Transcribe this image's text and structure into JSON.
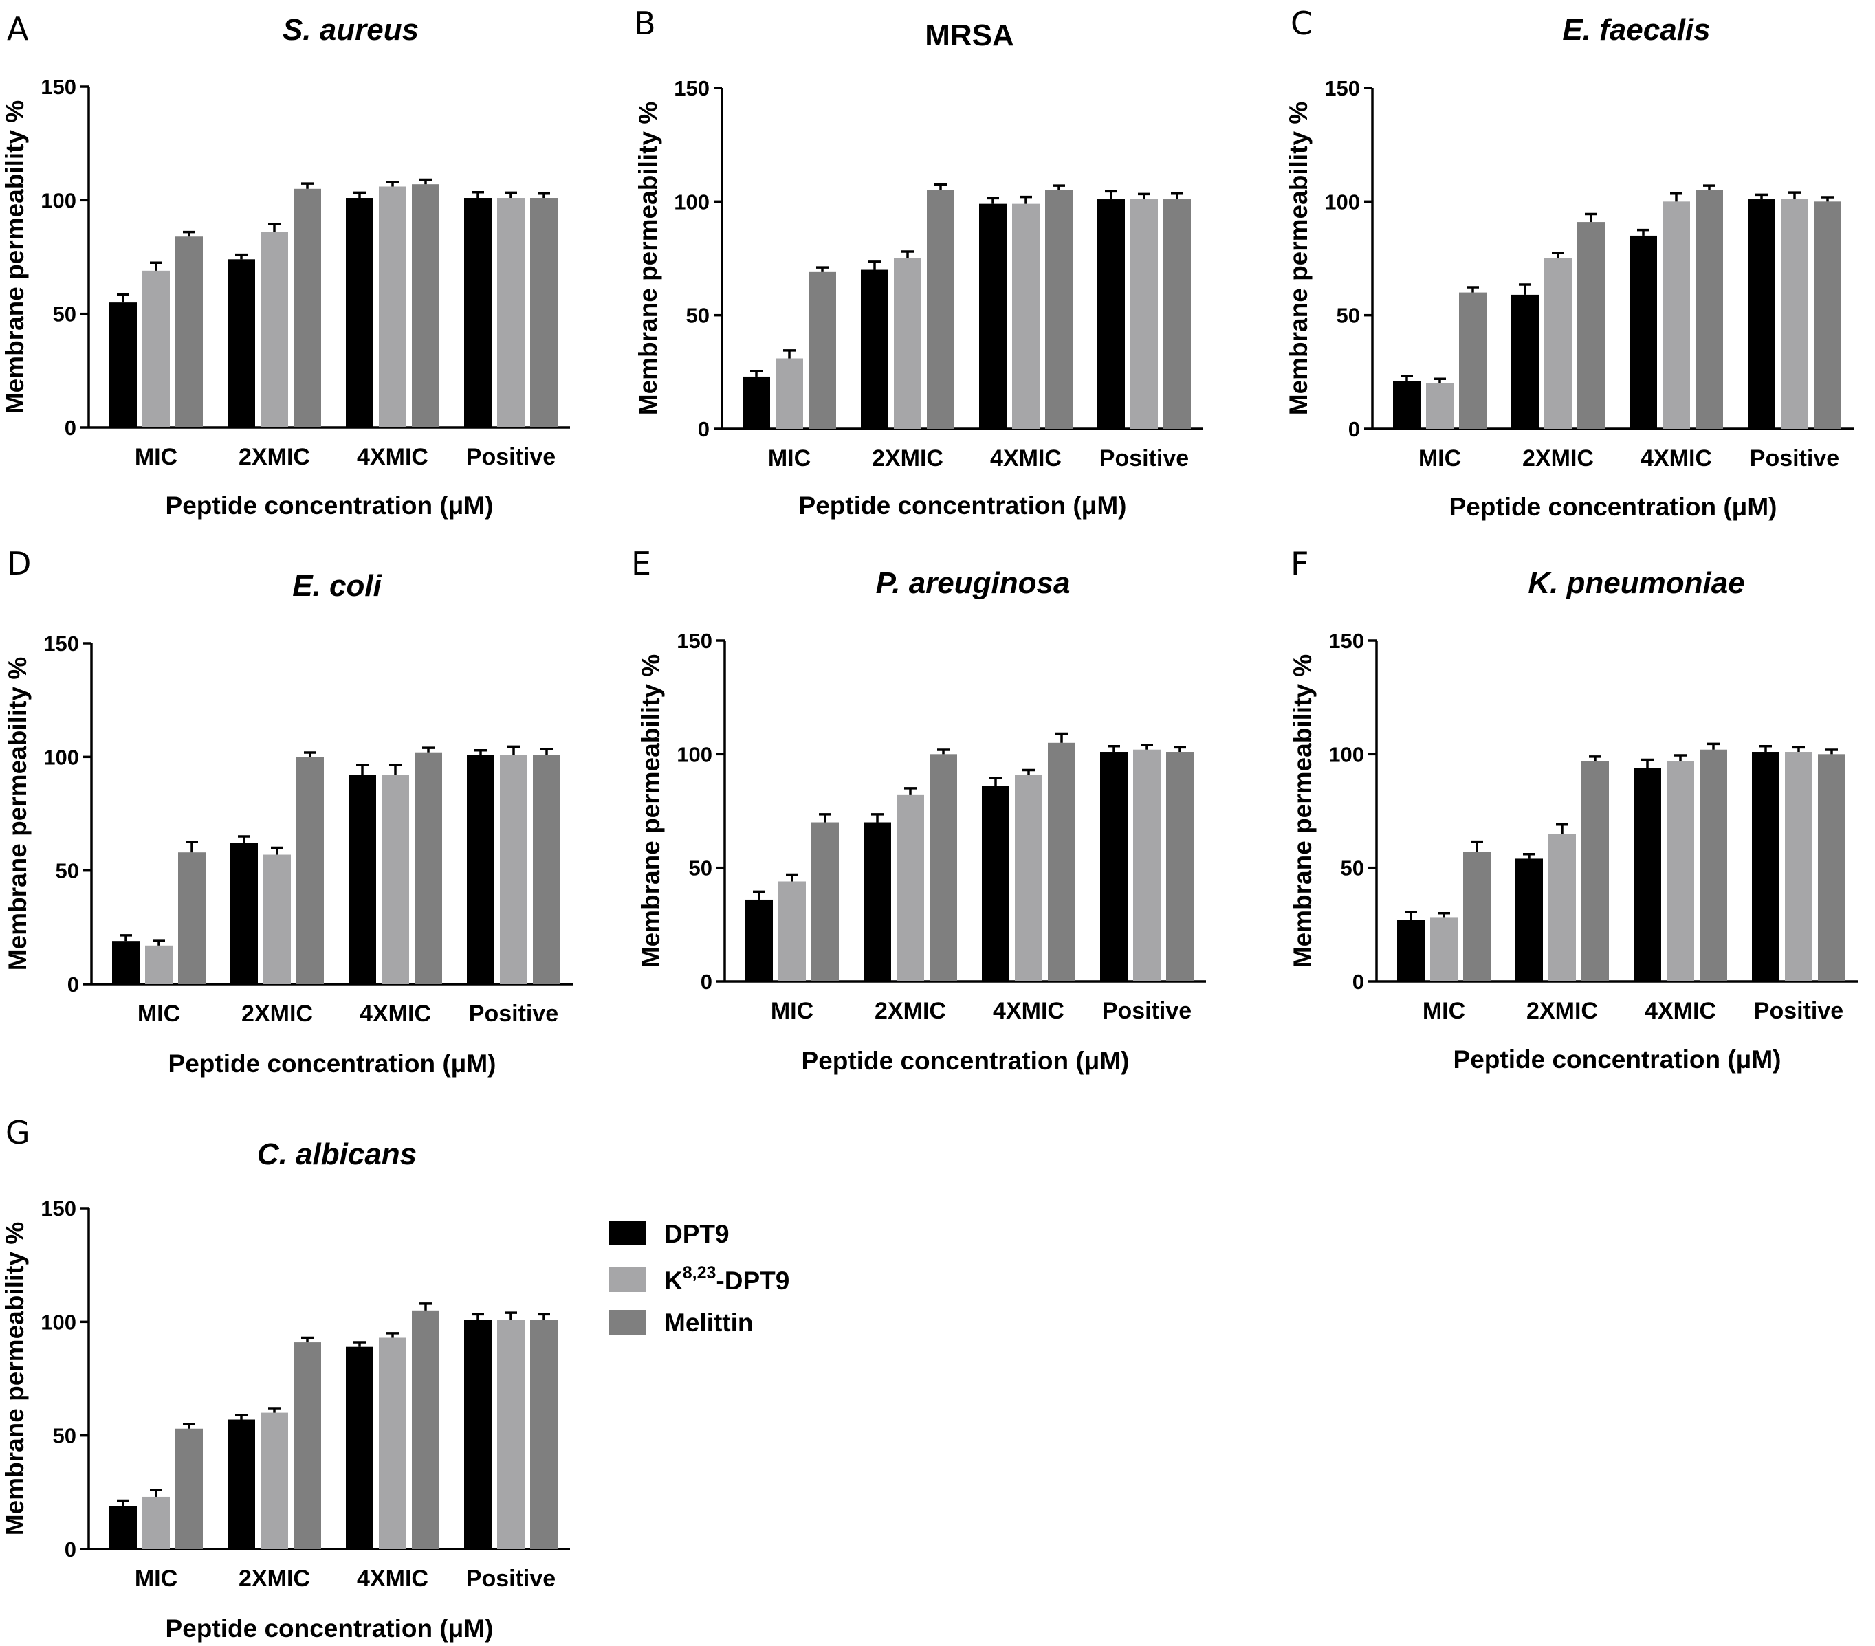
{
  "colors": {
    "DPT9": "#000000",
    "K8,23-DPT9": "#a6a6a8",
    "Melittin": "#7f7f7f"
  },
  "legend": {
    "items": [
      {
        "key": "DPT9",
        "label": "DPT9"
      },
      {
        "key": "K8,23-DPT9",
        "label_main": "K",
        "label_sup": "8,23",
        "label_rest": "-DPT9"
      },
      {
        "key": "Melittin",
        "label": "Melittin"
      }
    ]
  },
  "chart_data": [
    {
      "panel": "A",
      "type": "bar",
      "title": "S. aureus",
      "title_italic": true,
      "xlabel": "Peptide concentration (μM)",
      "ylabel": "Membrane permeability %",
      "ylim": [
        0,
        150
      ],
      "yticks": [
        0,
        50,
        100,
        150
      ],
      "categories": [
        "MIC",
        "2XMIC",
        "4XMIC",
        "Positive"
      ],
      "series": [
        {
          "name": "DPT9",
          "values": [
            55,
            74,
            101,
            101
          ],
          "errors": [
            2,
            0.5,
            0.8,
            1
          ]
        },
        {
          "name": "K8,23-DPT9",
          "values": [
            69,
            86,
            106,
            101
          ],
          "errors": [
            2,
            2,
            0.5,
            0.8
          ]
        },
        {
          "name": "Melittin",
          "values": [
            84,
            105,
            107,
            101
          ],
          "errors": [
            0.5,
            0.8,
            0.5,
            0.4
          ]
        }
      ]
    },
    {
      "panel": "B",
      "type": "bar",
      "title": "MRSA",
      "title_italic": false,
      "xlabel": "Peptide concentration (μM)",
      "ylabel": "Membrane permeability %",
      "ylim": [
        0,
        150
      ],
      "yticks": [
        0,
        50,
        100,
        150
      ],
      "categories": [
        "MIC",
        "2XMIC",
        "4XMIC",
        "Positive"
      ],
      "series": [
        {
          "name": "DPT9",
          "values": [
            23,
            70,
            99,
            101
          ],
          "errors": [
            0.8,
            2,
            1,
            2
          ]
        },
        {
          "name": "K8,23-DPT9",
          "values": [
            31,
            75,
            99,
            101
          ],
          "errors": [
            2,
            1.5,
            1.5,
            0.8
          ]
        },
        {
          "name": "Melittin",
          "values": [
            69,
            105,
            105,
            101
          ],
          "errors": [
            0.5,
            1,
            0.5,
            1
          ]
        }
      ]
    },
    {
      "panel": "C",
      "type": "bar",
      "title": "E. faecalis",
      "title_italic": true,
      "xlabel": "Peptide concentration (μM)",
      "ylabel": "Membrane permeability %",
      "ylim": [
        0,
        150
      ],
      "yticks": [
        0,
        50,
        100,
        150
      ],
      "categories": [
        "MIC",
        "2XMIC",
        "4XMIC",
        "Positive"
      ],
      "series": [
        {
          "name": "DPT9",
          "values": [
            21,
            59,
            85,
            101
          ],
          "errors": [
            0.8,
            3,
            1,
            0.5
          ]
        },
        {
          "name": "K8,23-DPT9",
          "values": [
            20,
            75,
            100,
            101
          ],
          "errors": [
            0.5,
            1,
            2,
            1.5
          ]
        },
        {
          "name": "Melittin",
          "values": [
            60,
            91,
            105,
            100
          ],
          "errors": [
            0.8,
            2,
            0.5,
            0.4
          ]
        }
      ]
    },
    {
      "panel": "D",
      "type": "bar",
      "title": "E. coli",
      "title_italic": true,
      "xlabel": "Peptide concentration (μM)",
      "ylabel": "Membrane permeability %",
      "ylim": [
        0,
        150
      ],
      "yticks": [
        0,
        50,
        100,
        150
      ],
      "categories": [
        "MIC",
        "2XMIC",
        "4XMIC",
        "Positive"
      ],
      "series": [
        {
          "name": "DPT9",
          "values": [
            19,
            62,
            92,
            101
          ],
          "errors": [
            1,
            1.5,
            3,
            0.4
          ]
        },
        {
          "name": "K8,23-DPT9",
          "values": [
            17,
            57,
            92,
            101
          ],
          "errors": [
            0.5,
            1.5,
            3,
            2
          ]
        },
        {
          "name": "Melittin",
          "values": [
            58,
            100,
            102,
            101
          ],
          "errors": [
            3,
            0.4,
            0.5,
            1
          ]
        }
      ]
    },
    {
      "panel": "E",
      "type": "bar",
      "title": "P. areuginosa",
      "title_italic": true,
      "xlabel": "Peptide concentration (μM)",
      "ylabel": "Membrane permeability %",
      "ylim": [
        0,
        150
      ],
      "yticks": [
        0,
        50,
        100,
        150
      ],
      "categories": [
        "MIC",
        "2XMIC",
        "4XMIC",
        "Positive"
      ],
      "series": [
        {
          "name": "DPT9",
          "values": [
            36,
            70,
            86,
            101
          ],
          "errors": [
            2,
            2,
            2,
            1
          ]
        },
        {
          "name": "K8,23-DPT9",
          "values": [
            44,
            82,
            91,
            102
          ],
          "errors": [
            1.5,
            1.5,
            0.5,
            0.5
          ]
        },
        {
          "name": "Melittin",
          "values": [
            70,
            100,
            105,
            101
          ],
          "errors": [
            2,
            0.4,
            2.5,
            0.5
          ]
        }
      ]
    },
    {
      "panel": "F",
      "type": "bar",
      "title": "K. pneumoniae",
      "title_italic": true,
      "xlabel": "Peptide concentration (μM)",
      "ylabel": "Membrane permeability %",
      "ylim": [
        0,
        150
      ],
      "yticks": [
        0,
        50,
        100,
        150
      ],
      "categories": [
        "MIC",
        "2XMIC",
        "4XMIC",
        "Positive"
      ],
      "series": [
        {
          "name": "DPT9",
          "values": [
            27,
            54,
            94,
            101
          ],
          "errors": [
            2,
            0.5,
            2,
            1
          ]
        },
        {
          "name": "K8,23-DPT9",
          "values": [
            28,
            65,
            97,
            101
          ],
          "errors": [
            0.5,
            2.5,
            1,
            0.5
          ]
        },
        {
          "name": "Melittin",
          "values": [
            57,
            97,
            102,
            100
          ],
          "errors": [
            3,
            0.4,
            1,
            0.4
          ]
        }
      ]
    },
    {
      "panel": "G",
      "type": "bar",
      "title": "C. albicans",
      "title_italic": true,
      "xlabel": "Peptide concentration (μM)",
      "ylabel": "Membrane permeability %",
      "ylim": [
        0,
        150
      ],
      "yticks": [
        0,
        50,
        100,
        150
      ],
      "categories": [
        "MIC",
        "2XMIC",
        "4XMIC",
        "Positive"
      ],
      "series": [
        {
          "name": "DPT9",
          "values": [
            19,
            57,
            89,
            101
          ],
          "errors": [
            0.8,
            0.5,
            0.5,
            0.8
          ]
        },
        {
          "name": "K8,23-DPT9",
          "values": [
            23,
            60,
            93,
            101
          ],
          "errors": [
            1.5,
            0.5,
            0.5,
            1.5
          ]
        },
        {
          "name": "Melittin",
          "values": [
            53,
            91,
            105,
            101
          ],
          "errors": [
            0.5,
            0.5,
            1.5,
            0.8
          ]
        }
      ]
    }
  ]
}
